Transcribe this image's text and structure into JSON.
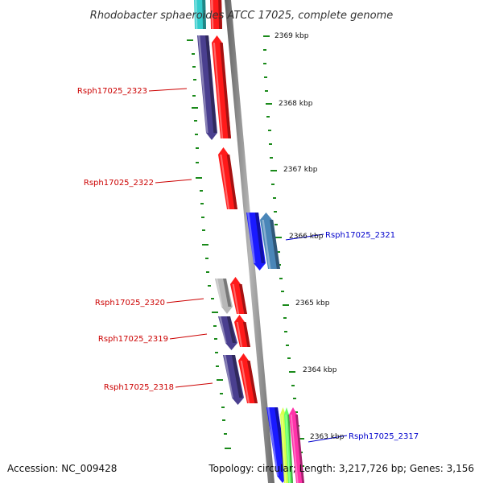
{
  "title": "Rhodobacter sphaeroides ATCC 17025, complete genome",
  "accession": "Accession: NC_009428",
  "summary": "Topology: circular; Length: 3,217,726 bp; Genes: 3,156",
  "colors": {
    "left_label": "#cc0000",
    "right_label": "#0000cc",
    "tick": "#1a8a1a",
    "backbone": "#8c8c8c",
    "purple_gene": "#4a3f8f",
    "red_gene": "#ff1a1a",
    "blue_gene": "#1a1aff",
    "steelblue_gene": "#4a86b8",
    "gray_gene": "#b8b8b8",
    "cyan_gene": "#33cccc",
    "yellow_gene": "#d9ff4d",
    "green_gene": "#66ff66",
    "magenta_gene": "#ff33aa"
  },
  "scale": {
    "unit": "kbp",
    "labels": [
      "2369 kbp",
      "2368 kbp",
      "2367 kbp",
      "2366 kbp",
      "2365 kbp",
      "2364 kbp",
      "2363 kbp"
    ]
  },
  "gene_labels": {
    "left": [
      "Rsph17025_2323",
      "Rsph17025_2322",
      "Rsph17025_2320",
      "Rsph17025_2319",
      "Rsph17025_2318"
    ],
    "right": [
      "Rsph17025_2321",
      "Rsph17025_2317"
    ]
  },
  "genes": [
    {
      "id": "cyan-top",
      "color_key": "cyan_gene",
      "strand": "-"
    },
    {
      "id": "red-top",
      "color_key": "red_gene",
      "strand": "+"
    },
    {
      "id": "Rsph17025_2323-purple",
      "color_key": "purple_gene",
      "strand": "-"
    },
    {
      "id": "Rsph17025_2323-red",
      "color_key": "red_gene",
      "strand": "+"
    },
    {
      "id": "Rsph17025_2322",
      "color_key": "red_gene",
      "strand": "+"
    },
    {
      "id": "Rsph17025_2321-blue",
      "color_key": "blue_gene",
      "strand": "+"
    },
    {
      "id": "Rsph17025_2321-steel",
      "color_key": "steelblue_gene",
      "strand": "+"
    },
    {
      "id": "Rsph17025_2320-gray",
      "color_key": "gray_gene",
      "strand": "-"
    },
    {
      "id": "Rsph17025_2320-red",
      "color_key": "red_gene",
      "strand": "+"
    },
    {
      "id": "Rsph17025_2319-purple",
      "color_key": "purple_gene",
      "strand": "-"
    },
    {
      "id": "Rsph17025_2319-red",
      "color_key": "red_gene",
      "strand": "+"
    },
    {
      "id": "Rsph17025_2318-purple",
      "color_key": "purple_gene",
      "strand": "-"
    },
    {
      "id": "Rsph17025_2318-red",
      "color_key": "red_gene",
      "strand": "+"
    },
    {
      "id": "Rsph17025_2317-blue",
      "color_key": "blue_gene",
      "strand": "+"
    },
    {
      "id": "Rsph17025_2317-yellow",
      "color_key": "yellow_gene",
      "strand": "+"
    },
    {
      "id": "Rsph17025_2317-green",
      "color_key": "green_gene",
      "strand": "+"
    },
    {
      "id": "Rsph17025_2317-magenta",
      "color_key": "magenta_gene",
      "strand": "+"
    }
  ]
}
